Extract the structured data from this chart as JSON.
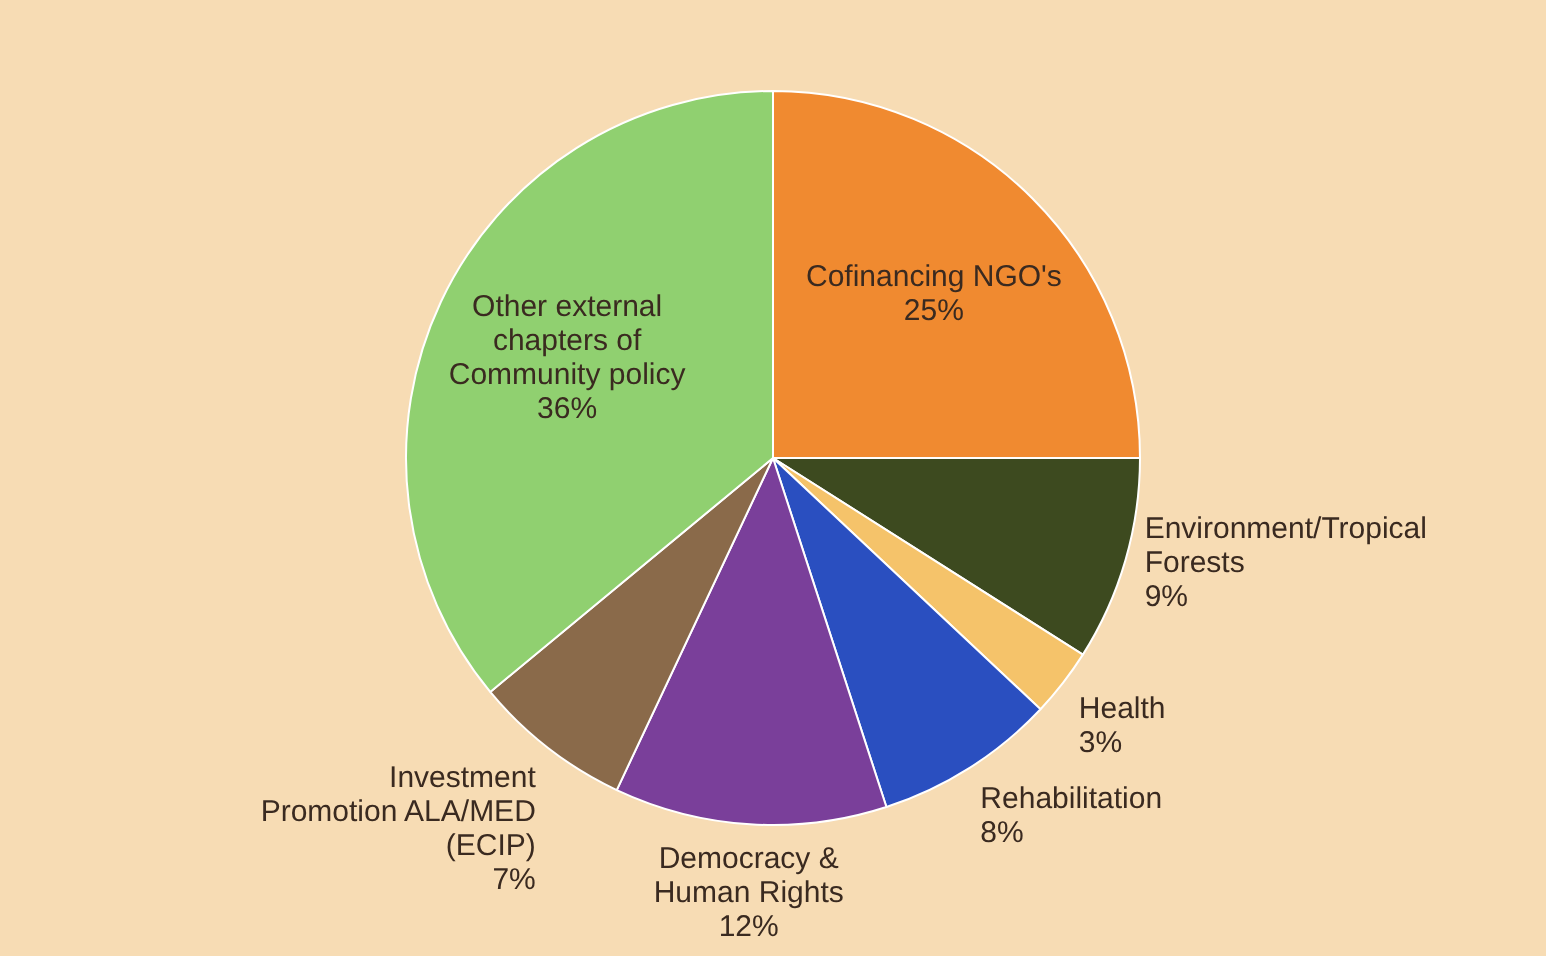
{
  "chart_data": {
    "type": "pie",
    "categories": [
      "Cofinancing NGO's",
      "Environment/Tropical Forests",
      "Health",
      "Rehabilitation",
      "Democracy & Human Rights",
      "Investment Promotion ALA/MED (ECIP)",
      "Other external chapters of Community policy"
    ],
    "values": [
      25,
      9,
      3,
      8,
      12,
      7,
      36
    ],
    "value_labels": [
      "25%",
      "9%",
      "3%",
      "8%",
      "12%",
      "7%",
      "36%"
    ],
    "colors": [
      "#f08a30",
      "#3d4a1f",
      "#f5c36a",
      "#2a4fc0",
      "#7a3f9a",
      "#8a6a4a",
      "#90d070"
    ]
  }
}
